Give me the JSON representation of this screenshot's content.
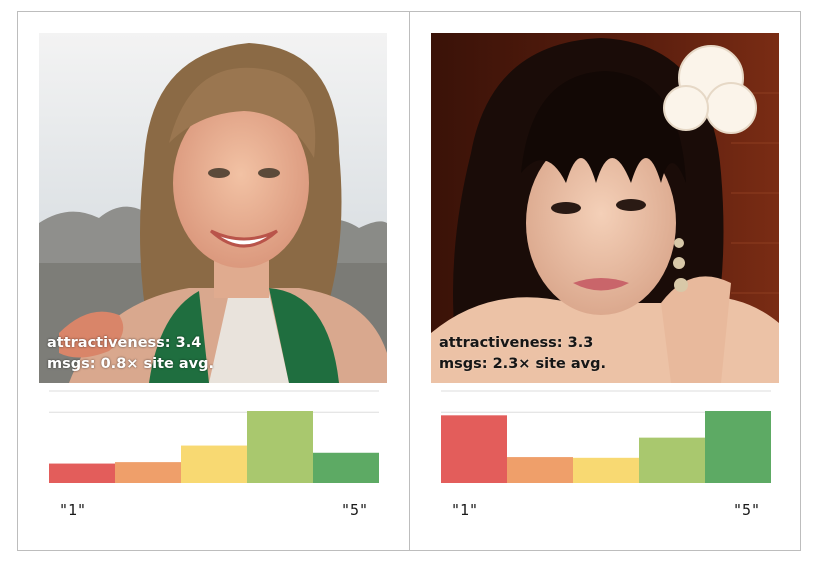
{
  "colors": {
    "frame": "#bdbdbd",
    "gridline": "#dddddd",
    "bar_colors": [
      "#e35d5b",
      "#ef9f6a",
      "#f8d972",
      "#a9c86e",
      "#5daa64"
    ]
  },
  "panels": [
    {
      "photo": {
        "description_icon": "portrait-photo",
        "caption_line1": "attractiveness: 3.4",
        "caption_line2": "msgs:  0.8× site avg."
      }
    },
    {
      "photo": {
        "description_icon": "portrait-photo",
        "caption_line1": "attractiveness: 3.3",
        "caption_line2": "msgs: 2.3× site avg."
      }
    }
  ],
  "chart_data": [
    {
      "type": "bar",
      "categories": [
        "1",
        "2",
        "3",
        "4",
        "5"
      ],
      "values": [
        0.27,
        0.29,
        0.52,
        1.0,
        0.42
      ],
      "tick_labels": [
        "\"1\"",
        "\"5\""
      ],
      "ylim": [
        0,
        1.3
      ],
      "grid": true,
      "title": "",
      "xlabel": "",
      "ylabel": ""
    },
    {
      "type": "bar",
      "categories": [
        "1",
        "2",
        "3",
        "4",
        "5"
      ],
      "values": [
        0.94,
        0.36,
        0.35,
        0.63,
        1.0
      ],
      "tick_labels": [
        "\"1\"",
        "\"5\""
      ],
      "ylim": [
        0,
        1.3
      ],
      "grid": true,
      "title": "",
      "xlabel": "",
      "ylabel": ""
    }
  ]
}
